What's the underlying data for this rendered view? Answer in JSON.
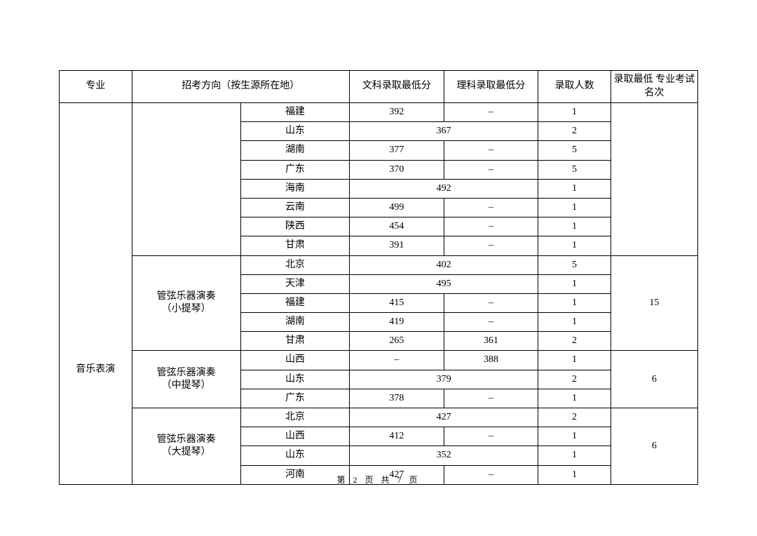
{
  "headers": {
    "col1": "专业",
    "col2": "招考方向（按生源所在地）",
    "col3": "文科录取最低分",
    "col4": "理科录取最低分",
    "col5": "录取人数",
    "col6": "录取最低\n专业考试名次"
  },
  "colwidths": {
    "c1": 100,
    "c2a": 150,
    "c2b": 150,
    "c3": 130,
    "c4": 130,
    "c5": 100,
    "c6": 120
  },
  "major": "音乐表演",
  "groups": [
    {
      "direction": "",
      "rank": "",
      "rows": [
        {
          "province": "福建",
          "wen": "392",
          "li": "–",
          "count": "1",
          "merged": false
        },
        {
          "province": "山东",
          "wen": "",
          "li": "",
          "merged_val": "367",
          "count": "2",
          "merged": true
        },
        {
          "province": "湖南",
          "wen": "377",
          "li": "–",
          "count": "5",
          "merged": false
        },
        {
          "province": "广东",
          "wen": "370",
          "li": "–",
          "count": "5",
          "merged": false
        },
        {
          "province": "海南",
          "wen": "",
          "li": "",
          "merged_val": "492",
          "count": "1",
          "merged": true
        },
        {
          "province": "云南",
          "wen": "499",
          "li": "–",
          "count": "1",
          "merged": false
        },
        {
          "province": "陕西",
          "wen": "454",
          "li": "–",
          "count": "1",
          "merged": false
        },
        {
          "province": "甘肃",
          "wen": "391",
          "li": "–",
          "count": "1",
          "merged": false
        }
      ]
    },
    {
      "direction": "管弦乐器演奏\n（小提琴）",
      "rank": "15",
      "rows": [
        {
          "province": "北京",
          "merged_val": "402",
          "count": "5",
          "merged": true
        },
        {
          "province": "天津",
          "merged_val": "495",
          "count": "1",
          "merged": true
        },
        {
          "province": "福建",
          "wen": "415",
          "li": "–",
          "count": "1",
          "merged": false
        },
        {
          "province": "湖南",
          "wen": "419",
          "li": "–",
          "count": "1",
          "merged": false
        },
        {
          "province": "甘肃",
          "wen": "265",
          "li": "361",
          "count": "2",
          "merged": false
        }
      ]
    },
    {
      "direction": "管弦乐器演奏\n（中提琴）",
      "rank": "6",
      "rows": [
        {
          "province": "山西",
          "wen": "–",
          "li": "388",
          "count": "1",
          "merged": false
        },
        {
          "province": "山东",
          "merged_val": "379",
          "count": "2",
          "merged": true
        },
        {
          "province": "广东",
          "wen": "378",
          "li": "–",
          "count": "1",
          "merged": false
        }
      ]
    },
    {
      "direction": "管弦乐器演奏\n（大提琴）",
      "rank": "6",
      "rows": [
        {
          "province": "北京",
          "merged_val": "427",
          "count": "2",
          "merged": true
        },
        {
          "province": "山西",
          "wen": "412",
          "li": "–",
          "count": "1",
          "merged": false
        },
        {
          "province": "山东",
          "merged_val": "352",
          "count": "1",
          "merged": true
        },
        {
          "province": "河南",
          "wen": "427",
          "li": "–",
          "count": "1",
          "merged": false
        }
      ]
    }
  ],
  "footer": {
    "text": "第 2 页 共 7 页"
  }
}
